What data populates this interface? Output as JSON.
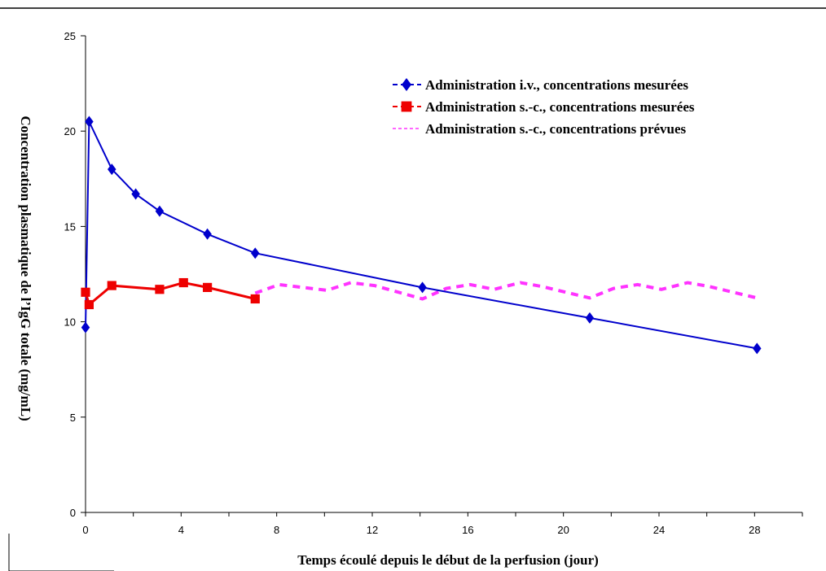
{
  "chart_data": {
    "type": "line",
    "title": "",
    "xlabel": "Temps écoulé depuis le début de la perfusion (jour)",
    "ylabel": "Concentration plasmatique de l’IgG totale (mg/mL)",
    "xlim": [
      0,
      30
    ],
    "ylim": [
      0,
      25
    ],
    "x_ticks": [
      0,
      4,
      8,
      12,
      16,
      20,
      24,
      28
    ],
    "y_ticks": [
      0,
      5,
      10,
      15,
      20,
      25
    ],
    "grid": false,
    "legend_position": "top-right",
    "series": [
      {
        "name": "Administration i.v., concentrations mesurées",
        "color": "#0000cc",
        "marker": "diamond",
        "line_style": "solid",
        "points": [
          {
            "x": 0,
            "y": 9.7
          },
          {
            "x": 0.15,
            "y": 20.5
          },
          {
            "x": 1.1,
            "y": 18.0
          },
          {
            "x": 2.1,
            "y": 16.7
          },
          {
            "x": 3.1,
            "y": 15.8
          },
          {
            "x": 5.1,
            "y": 14.6
          },
          {
            "x": 7.1,
            "y": 13.6
          },
          {
            "x": 14.1,
            "y": 11.8
          },
          {
            "x": 21.1,
            "y": 10.2
          },
          {
            "x": 28.1,
            "y": 8.6
          }
        ]
      },
      {
        "name": "Administration s.-c., concentrations mesurées",
        "color": "#ee0000",
        "marker": "square",
        "line_style": "solid",
        "points": [
          {
            "x": 0,
            "y": 11.55
          },
          {
            "x": 0.15,
            "y": 10.9
          },
          {
            "x": 1.1,
            "y": 11.9
          },
          {
            "x": 3.1,
            "y": 11.7
          },
          {
            "x": 4.1,
            "y": 12.05
          },
          {
            "x": 5.1,
            "y": 11.8
          },
          {
            "x": 7.1,
            "y": 11.2
          }
        ]
      },
      {
        "name": "Administration s.-c., concentrations prévues",
        "color": "#ff33ff",
        "marker": "none",
        "line_style": "dashed",
        "points": [
          {
            "x": 7.1,
            "y": 11.5
          },
          {
            "x": 8.1,
            "y": 11.95
          },
          {
            "x": 10.1,
            "y": 11.65
          },
          {
            "x": 11.1,
            "y": 12.05
          },
          {
            "x": 12.1,
            "y": 11.9
          },
          {
            "x": 14.1,
            "y": 11.2
          },
          {
            "x": 15.1,
            "y": 11.75
          },
          {
            "x": 16.1,
            "y": 11.95
          },
          {
            "x": 17.1,
            "y": 11.7
          },
          {
            "x": 18.2,
            "y": 12.05
          },
          {
            "x": 19.1,
            "y": 11.85
          },
          {
            "x": 21.1,
            "y": 11.25
          },
          {
            "x": 22.1,
            "y": 11.75
          },
          {
            "x": 23.1,
            "y": 11.95
          },
          {
            "x": 24.1,
            "y": 11.7
          },
          {
            "x": 25.2,
            "y": 12.05
          },
          {
            "x": 26.1,
            "y": 11.85
          },
          {
            "x": 28.1,
            "y": 11.25
          }
        ]
      }
    ]
  }
}
